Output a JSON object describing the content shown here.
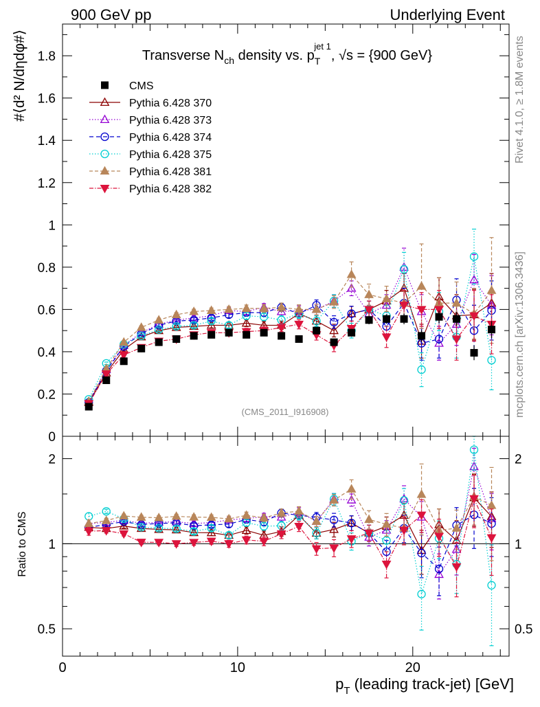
{
  "header": {
    "left": "900 GeV pp",
    "right": "Underlying Event"
  },
  "side": {
    "rivet": "Rivet 4.1.0, ≥ 1.8M events",
    "mcplots": "mcplots.cern.ch [arXiv:1306.3436]"
  },
  "chart_data": {
    "type": "scatter",
    "title_parts": {
      "pre": "Transverse N",
      "sub": "ch",
      "mid": " density vs. p",
      "psub": "T",
      "psup": "jet 1",
      "post": ", √s = {900 GeV}"
    },
    "ylabel": "#⟨d² N/dηdφ#⟩",
    "ratio_ylabel": "Ratio to CMS",
    "xlabel": "p_T (leading track-jet) [GeV]",
    "xlabel_parts": {
      "p": "p",
      "sub": "T",
      "rest": " (leading track-jet) [GeV]"
    },
    "watermark": "(CMS_2011_I916908)",
    "xlim": [
      0,
      25.5
    ],
    "ylim": [
      0,
      1.95
    ],
    "ratio_ylim": [
      0.4,
      2.4
    ],
    "xticks": [
      0,
      10,
      20
    ],
    "yticks": [
      0,
      0.2,
      0.4,
      0.6,
      0.8,
      1,
      1.2,
      1.4,
      1.6,
      1.8
    ],
    "ytick_labels": [
      "0",
      "0.2",
      "0.4",
      "0.6",
      "0.8",
      "1",
      "1.2",
      "1.4",
      "1.6",
      "1.8"
    ],
    "ratio_yticks": [
      0.5,
      1,
      2
    ],
    "ratio_ytick_labels": [
      "0.5",
      "1",
      "2"
    ],
    "x": [
      1.5,
      2.5,
      3.5,
      4.5,
      5.5,
      6.5,
      7.5,
      8.5,
      9.5,
      10.5,
      11.5,
      12.5,
      13.5,
      14.5,
      15.5,
      16.5,
      17.5,
      18.5,
      19.5,
      20.5,
      21.5,
      22.5,
      23.5,
      24.5
    ],
    "series": [
      {
        "name": "CMS",
        "color": "#000000",
        "marker": "square",
        "dash": "none",
        "values": [
          0.14,
          0.265,
          0.355,
          0.415,
          0.445,
          0.46,
          0.475,
          0.48,
          0.49,
          0.48,
          0.49,
          0.475,
          0.46,
          0.5,
          0.445,
          0.49,
          0.55,
          0.555,
          0.555,
          0.475,
          0.565,
          0.555,
          0.395,
          0.505
        ],
        "errors": [
          0.005,
          0.006,
          0.007,
          0.008,
          0.008,
          0.009,
          0.009,
          0.01,
          0.01,
          0.011,
          0.012,
          0.012,
          0.013,
          0.015,
          0.016,
          0.018,
          0.02,
          0.022,
          0.025,
          0.027,
          0.03,
          0.032,
          0.035,
          0.04
        ]
      },
      {
        "name": "Pythia 6.428 370",
        "color": "#8b0000",
        "marker": "tri-open",
        "dash": "none",
        "values": [
          0.16,
          0.3,
          0.41,
          0.47,
          0.5,
          0.515,
          0.52,
          0.525,
          0.525,
          0.535,
          0.525,
          0.525,
          0.58,
          0.545,
          0.5,
          0.58,
          0.6,
          0.64,
          0.7,
          0.45,
          0.66,
          0.57,
          0.575,
          0.63
        ],
        "errors": [
          0.005,
          0.006,
          0.007,
          0.008,
          0.009,
          0.01,
          0.011,
          0.012,
          0.014,
          0.016,
          0.018,
          0.02,
          0.022,
          0.025,
          0.03,
          0.035,
          0.04,
          0.05,
          0.07,
          0.08,
          0.09,
          0.1,
          0.12,
          0.14
        ]
      },
      {
        "name": "Pythia 6.428 373",
        "color": "#9400d3",
        "marker": "tri-open",
        "dash": "1.5,2.5",
        "values": [
          0.165,
          0.315,
          0.43,
          0.49,
          0.53,
          0.55,
          0.56,
          0.57,
          0.595,
          0.59,
          0.61,
          0.59,
          0.595,
          0.6,
          0.64,
          0.7,
          0.58,
          0.62,
          0.8,
          0.59,
          0.44,
          0.53,
          0.74,
          0.62
        ],
        "errors": [
          0.005,
          0.006,
          0.007,
          0.008,
          0.009,
          0.01,
          0.011,
          0.012,
          0.014,
          0.016,
          0.018,
          0.02,
          0.022,
          0.025,
          0.03,
          0.035,
          0.04,
          0.05,
          0.09,
          0.08,
          0.08,
          0.1,
          0.12,
          0.14
        ]
      },
      {
        "name": "Pythia 6.428 374",
        "color": "#0000cd",
        "marker": "circ-open",
        "dash": "6,4",
        "values": [
          0.16,
          0.31,
          0.425,
          0.485,
          0.525,
          0.545,
          0.55,
          0.56,
          0.575,
          0.585,
          0.585,
          0.61,
          0.58,
          0.62,
          0.54,
          0.58,
          0.6,
          0.52,
          0.63,
          0.44,
          0.46,
          0.645,
          0.5,
          0.595
        ],
        "errors": [
          0.005,
          0.006,
          0.007,
          0.008,
          0.009,
          0.01,
          0.011,
          0.012,
          0.014,
          0.016,
          0.018,
          0.02,
          0.022,
          0.025,
          0.03,
          0.035,
          0.04,
          0.05,
          0.07,
          0.08,
          0.09,
          0.1,
          0.12,
          0.14
        ]
      },
      {
        "name": "Pythia 6.428 375",
        "color": "#00ced1",
        "marker": "circ-open",
        "dash": "1.5,2.5",
        "values": [
          0.175,
          0.345,
          0.435,
          0.475,
          0.505,
          0.52,
          0.525,
          0.545,
          0.525,
          0.57,
          0.565,
          0.55,
          0.58,
          0.545,
          0.64,
          0.5,
          0.6,
          0.57,
          0.79,
          0.315,
          0.59,
          0.47,
          0.85,
          0.36
        ],
        "errors": [
          0.005,
          0.006,
          0.007,
          0.008,
          0.009,
          0.01,
          0.011,
          0.012,
          0.014,
          0.016,
          0.018,
          0.02,
          0.022,
          0.025,
          0.03,
          0.035,
          0.04,
          0.05,
          0.08,
          0.08,
          0.09,
          0.1,
          0.13,
          0.14
        ]
      },
      {
        "name": "Pythia 6.428 381",
        "color": "#b8865a",
        "marker": "tri-filled",
        "dash": "5,3",
        "values": [
          0.165,
          0.32,
          0.445,
          0.515,
          0.55,
          0.575,
          0.59,
          0.595,
          0.6,
          0.605,
          0.605,
          0.61,
          0.6,
          0.6,
          0.635,
          0.765,
          0.67,
          0.65,
          0.63,
          0.71,
          0.63,
          0.63,
          0.58,
          0.69
        ],
        "errors": [
          0.005,
          0.006,
          0.007,
          0.008,
          0.009,
          0.01,
          0.011,
          0.012,
          0.014,
          0.016,
          0.018,
          0.02,
          0.022,
          0.025,
          0.03,
          0.06,
          0.05,
          0.06,
          0.08,
          0.2,
          0.12,
          0.1,
          0.12,
          0.25
        ]
      },
      {
        "name": "Pythia 6.428 382",
        "color": "#dc143c",
        "marker": "tri-down-filled",
        "dash": "6,2,1.5,2",
        "values": [
          0.155,
          0.295,
          0.385,
          0.42,
          0.45,
          0.46,
          0.48,
          0.49,
          0.49,
          0.495,
          0.5,
          0.515,
          0.53,
          0.48,
          0.43,
          0.51,
          0.6,
          0.47,
          0.62,
          0.6,
          0.6,
          0.46,
          0.57,
          0.53
        ],
        "errors": [
          0.005,
          0.006,
          0.007,
          0.008,
          0.009,
          0.01,
          0.011,
          0.012,
          0.014,
          0.016,
          0.018,
          0.02,
          0.022,
          0.025,
          0.03,
          0.035,
          0.04,
          0.05,
          0.07,
          0.08,
          0.09,
          0.1,
          0.12,
          0.14
        ]
      }
    ]
  }
}
